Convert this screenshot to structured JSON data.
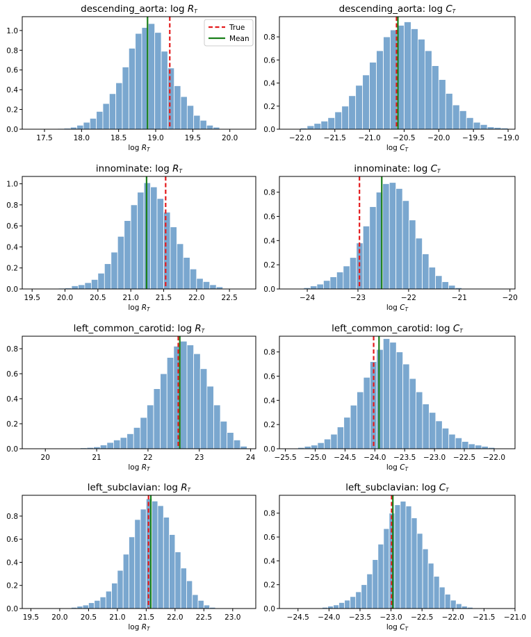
{
  "legend": {
    "placement": "top-right",
    "panel_index": 0,
    "entries": [
      {
        "label": "True",
        "color": "#e31a1c",
        "style": "dashed"
      },
      {
        "label": "Mean",
        "color": "#1a7f1a",
        "style": "solid"
      }
    ]
  },
  "colors": {
    "bar": "#7aa7cf",
    "bar_edge": "#ffffff",
    "true": "#e31a1c",
    "mean": "#1a7f1a"
  },
  "chart_data": [
    {
      "type": "bar",
      "title": "descending_aorta: log",
      "title_sub": "R",
      "xlabel": "log",
      "xlabel_sub": "R",
      "xlim": [
        17.2,
        20.35
      ],
      "ylim": [
        0,
        1.14
      ],
      "xticks": [
        "17.5",
        "18.0",
        "18.5",
        "19.0",
        "19.5",
        "20.0"
      ],
      "yticks": [
        "0.0",
        "0.2",
        "0.4",
        "0.6",
        "0.8",
        "1.0"
      ],
      "bin_start": 17.5,
      "bin_width": 0.0875,
      "values": [
        0.003,
        0.003,
        0.007,
        0.01,
        0.02,
        0.04,
        0.07,
        0.11,
        0.18,
        0.26,
        0.36,
        0.47,
        0.63,
        0.82,
        0.97,
        1.03,
        1.07,
        0.98,
        0.79,
        0.62,
        0.44,
        0.33,
        0.24,
        0.14,
        0.09,
        0.04,
        0.02,
        0.005
      ],
      "true_value": 19.19,
      "mean_value": 18.89
    },
    {
      "type": "bar",
      "title": "descending_aorta: log",
      "title_sub": "C",
      "xlabel": "log",
      "xlabel_sub": "C",
      "xlim": [
        -22.3,
        -18.9
      ],
      "ylim": [
        0,
        0.975
      ],
      "xticks": [
        "-22.0",
        "-21.5",
        "-21.0",
        "-20.5",
        "-20.0",
        "-19.5",
        "-19.0"
      ],
      "yticks": [
        "0.0",
        "0.2",
        "0.4",
        "0.6",
        "0.8"
      ],
      "bin_start": -22.1,
      "bin_width": 0.1,
      "values": [
        0.005,
        0.01,
        0.03,
        0.05,
        0.07,
        0.1,
        0.15,
        0.2,
        0.29,
        0.38,
        0.47,
        0.58,
        0.68,
        0.8,
        0.86,
        0.9,
        0.93,
        0.87,
        0.78,
        0.68,
        0.55,
        0.43,
        0.31,
        0.21,
        0.16,
        0.1,
        0.06,
        0.04,
        0.02,
        0.015,
        0.01
      ],
      "true_value": -20.61,
      "mean_value": -20.59
    },
    {
      "type": "bar",
      "title": "innominate: log",
      "title_sub": "R",
      "xlabel": "log",
      "xlabel_sub": "R",
      "xlim": [
        19.35,
        22.9
      ],
      "ylim": [
        0,
        1.07
      ],
      "xticks": [
        "19.5",
        "20.0",
        "20.5",
        "21.0",
        "21.5",
        "22.0",
        "22.5"
      ],
      "yticks": [
        "0.0",
        "0.2",
        "0.4",
        "0.6",
        "0.8",
        "1.0"
      ],
      "bin_start": 19.7,
      "bin_width": 0.1,
      "values": [
        0.003,
        0.003,
        0.007,
        0.01,
        0.03,
        0.04,
        0.06,
        0.09,
        0.15,
        0.24,
        0.35,
        0.5,
        0.65,
        0.8,
        0.92,
        1.01,
        0.97,
        0.86,
        0.73,
        0.59,
        0.43,
        0.3,
        0.19,
        0.1,
        0.07,
        0.04,
        0.02,
        0.005
      ],
      "true_value": 21.53,
      "mean_value": 21.24
    },
    {
      "type": "bar",
      "title": "innominate: log",
      "title_sub": "C",
      "xlabel": "log",
      "xlabel_sub": "C",
      "xlim": [
        -24.55,
        -19.9
      ],
      "ylim": [
        0,
        0.93
      ],
      "xticks": [
        "-24",
        "-23",
        "-22",
        "-21",
        "-20"
      ],
      "yticks": [
        "0.0",
        "0.2",
        "0.4",
        "0.6",
        "0.8"
      ],
      "bin_start": -24.2,
      "bin_width": 0.13,
      "values": [
        0.005,
        0.01,
        0.025,
        0.04,
        0.07,
        0.1,
        0.14,
        0.19,
        0.26,
        0.38,
        0.52,
        0.68,
        0.8,
        0.87,
        0.88,
        0.83,
        0.73,
        0.57,
        0.42,
        0.29,
        0.18,
        0.11,
        0.06,
        0.03,
        0.01,
        0.005
      ],
      "true_value": -22.97,
      "mean_value": -22.53
    },
    {
      "type": "bar",
      "title": "left_common_carotid: log",
      "title_sub": "R",
      "xlabel": "log",
      "xlabel_sub": "R",
      "xlim": [
        19.55,
        24.1
      ],
      "ylim": [
        0,
        0.9
      ],
      "xticks": [
        "20",
        "21",
        "22",
        "23",
        "24"
      ],
      "yticks": [
        "0.0",
        "0.2",
        "0.4",
        "0.6",
        "0.8"
      ],
      "bin_start": 20.55,
      "bin_width": 0.13,
      "values": [
        0.003,
        0.007,
        0.01,
        0.015,
        0.03,
        0.05,
        0.07,
        0.09,
        0.12,
        0.17,
        0.25,
        0.35,
        0.48,
        0.6,
        0.73,
        0.82,
        0.86,
        0.83,
        0.76,
        0.64,
        0.5,
        0.35,
        0.22,
        0.13,
        0.07,
        0.02
      ],
      "true_value": 22.59,
      "mean_value": 22.62
    },
    {
      "type": "bar",
      "title": "left_common_carotid: log",
      "title_sub": "C",
      "xlabel": "log",
      "xlabel_sub": "C",
      "xlim": [
        -25.6,
        -21.65
      ],
      "ylim": [
        0,
        0.93
      ],
      "xticks": [
        "-25.5",
        "-25.0",
        "-24.5",
        "-24.0",
        "-23.5",
        "-23.0",
        "-22.5",
        "-22.0"
      ],
      "yticks": [
        "0.0",
        "0.2",
        "0.4",
        "0.6",
        "0.8"
      ],
      "bin_start": -25.4,
      "bin_width": 0.11,
      "values": [
        0.005,
        0.01,
        0.02,
        0.03,
        0.05,
        0.08,
        0.12,
        0.18,
        0.26,
        0.36,
        0.47,
        0.59,
        0.72,
        0.82,
        0.91,
        0.88,
        0.8,
        0.7,
        0.58,
        0.47,
        0.37,
        0.3,
        0.23,
        0.17,
        0.12,
        0.09,
        0.06,
        0.04,
        0.03,
        0.02,
        0.01
      ],
      "true_value": -24.02,
      "mean_value": -23.93
    },
    {
      "type": "bar",
      "title": "left_subclavian: log",
      "title_sub": "R",
      "xlabel": "log",
      "xlabel_sub": "R",
      "xlim": [
        19.35,
        23.4
      ],
      "ylim": [
        0,
        0.98
      ],
      "xticks": [
        "19.5",
        "20.0",
        "20.5",
        "21.0",
        "21.5",
        "22.0",
        "22.5",
        "23.0"
      ],
      "yticks": [
        "0.0",
        "0.2",
        "0.4",
        "0.6",
        "0.8"
      ],
      "bin_start": 20.1,
      "bin_width": 0.1,
      "values": [
        0.005,
        0.01,
        0.02,
        0.03,
        0.05,
        0.07,
        0.1,
        0.15,
        0.22,
        0.33,
        0.47,
        0.62,
        0.77,
        0.86,
        0.95,
        0.93,
        0.89,
        0.79,
        0.64,
        0.49,
        0.35,
        0.24,
        0.12,
        0.07,
        0.03,
        0.01
      ],
      "true_value": 21.54,
      "mean_value": 21.58
    },
    {
      "type": "bar",
      "title": "left_subclavian: log",
      "title_sub": "C",
      "xlabel": "log",
      "xlabel_sub": "C",
      "xlim": [
        -24.8,
        -21.0
      ],
      "ylim": [
        0,
        0.95
      ],
      "xticks": [
        "-24.5",
        "-24.0",
        "-23.5",
        "-23.0",
        "-22.5",
        "-22.0",
        "-21.5",
        "-21.0"
      ],
      "yticks": [
        "0.0",
        "0.2",
        "0.4",
        "0.6",
        "0.8"
      ],
      "bin_start": -24.2,
      "bin_width": 0.09,
      "values": [
        0.005,
        0.01,
        0.02,
        0.03,
        0.05,
        0.07,
        0.1,
        0.14,
        0.2,
        0.29,
        0.41,
        0.54,
        0.67,
        0.8,
        0.87,
        0.9,
        0.86,
        0.76,
        0.63,
        0.5,
        0.38,
        0.27,
        0.18,
        0.12,
        0.07,
        0.04,
        0.02,
        0.01
      ],
      "true_value": -22.99,
      "mean_value": -22.97
    }
  ]
}
